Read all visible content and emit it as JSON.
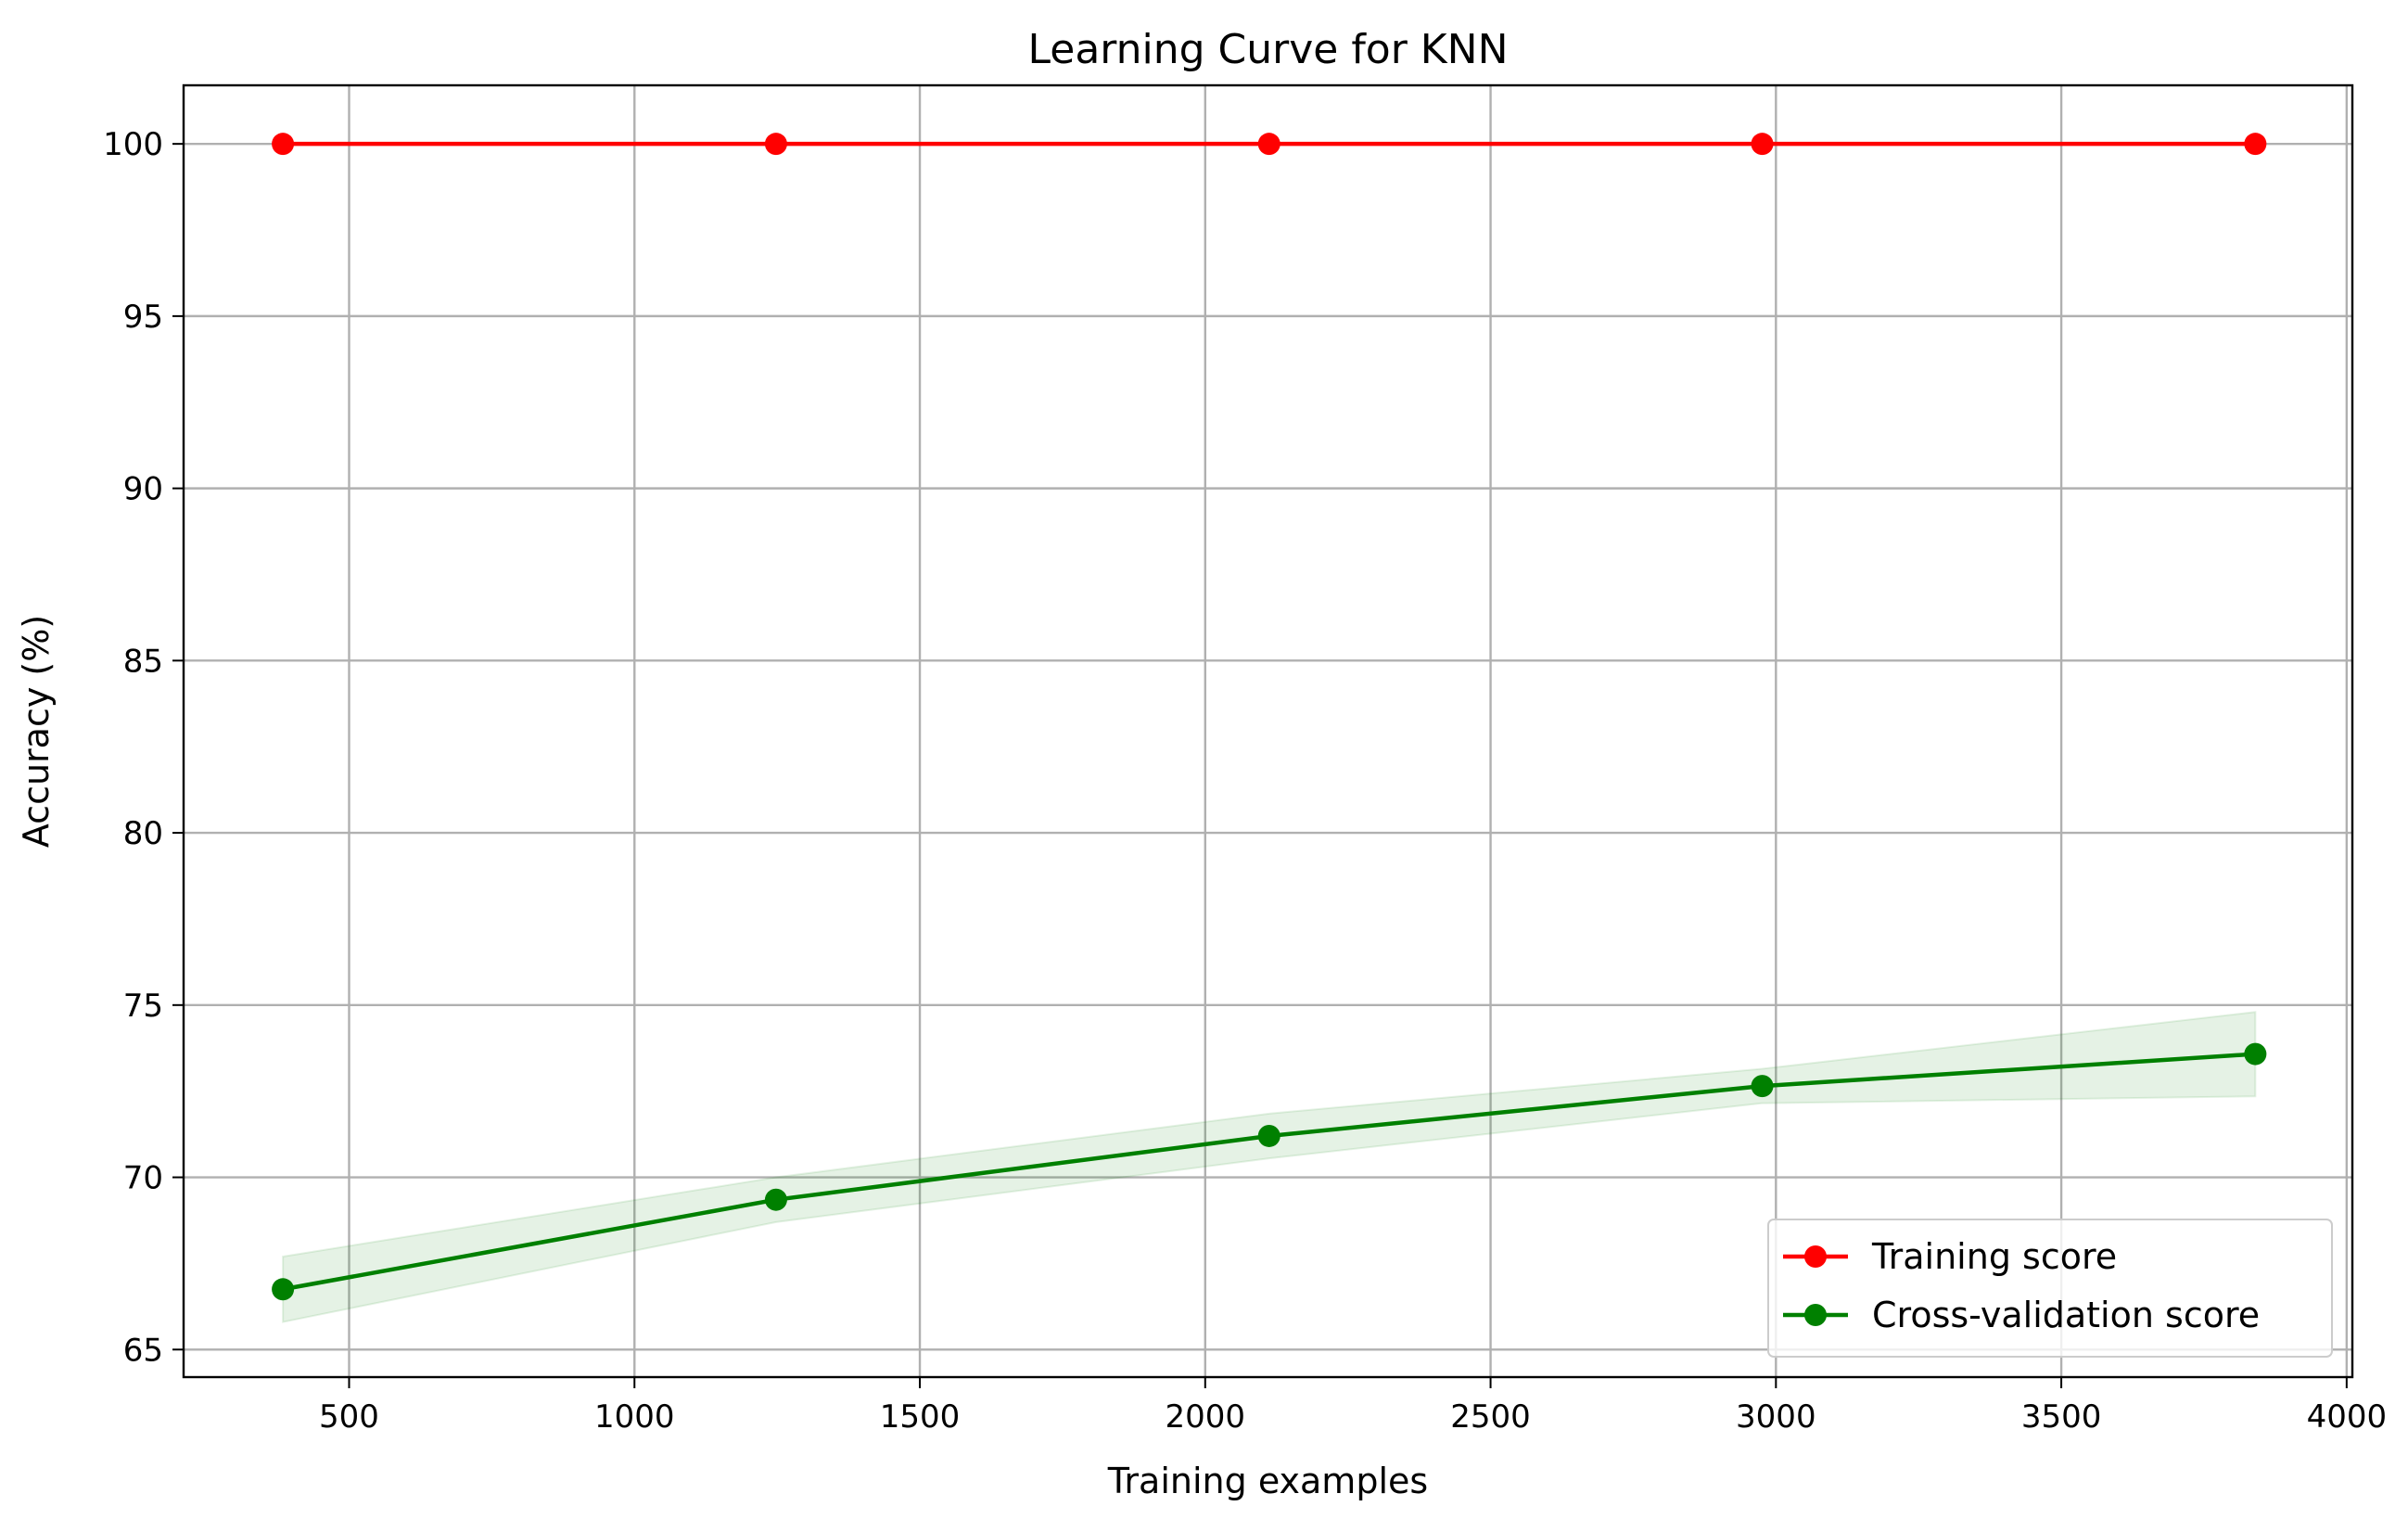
{
  "chart_data": {
    "type": "line",
    "title": "Learning Curve for KNN",
    "xlabel": "Training examples",
    "ylabel": "Accuracy (%)",
    "x": [
      384,
      1248,
      2112,
      2976,
      3840
    ],
    "xlim": [
      210,
      4010
    ],
    "ylim": [
      64.2,
      101.7
    ],
    "xticks": [
      500,
      1000,
      1500,
      2000,
      2500,
      3000,
      3500,
      4000
    ],
    "yticks": [
      65,
      70,
      75,
      80,
      85,
      90,
      95,
      100
    ],
    "grid": true,
    "legend_position": "lower right",
    "series": [
      {
        "name": "Training score",
        "color": "#ff0000",
        "values": [
          100,
          100,
          100,
          100,
          100
        ],
        "band_low": [
          100,
          100,
          100,
          100,
          100
        ],
        "band_high": [
          100,
          100,
          100,
          100,
          100
        ]
      },
      {
        "name": "Cross-validation score",
        "color": "#008000",
        "band_color": "#008000",
        "values": [
          66.75,
          69.35,
          71.2,
          72.65,
          73.58
        ],
        "band_low": [
          65.8,
          68.7,
          70.55,
          72.15,
          72.35
        ],
        "band_high": [
          67.7,
          70.0,
          71.85,
          73.15,
          74.8
        ]
      }
    ]
  }
}
